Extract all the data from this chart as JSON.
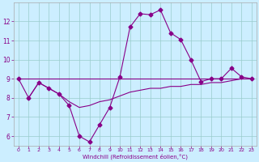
{
  "background_color": "#cceeff",
  "grid_color": "#99cccc",
  "line_color": "#880088",
  "xlabel": "Windchill (Refroidissement éolien,°C)",
  "ylim": [
    5.5,
    13.0
  ],
  "xlim": [
    -0.5,
    23.5
  ],
  "yticks": [
    6,
    7,
    8,
    9,
    10,
    11,
    12
  ],
  "xticks": [
    0,
    1,
    2,
    3,
    4,
    5,
    6,
    7,
    8,
    9,
    10,
    11,
    12,
    13,
    14,
    15,
    16,
    17,
    18,
    19,
    20,
    21,
    22,
    23
  ],
  "line1_x": [
    0,
    1,
    2,
    3,
    4,
    5,
    6,
    7,
    8,
    9,
    10,
    11,
    12,
    13,
    14,
    15,
    16,
    17,
    18,
    19,
    20,
    21,
    22,
    23
  ],
  "line1_y": [
    9.0,
    8.0,
    8.8,
    8.5,
    8.2,
    7.6,
    6.0,
    5.7,
    6.6,
    7.5,
    9.1,
    11.7,
    12.4,
    12.35,
    12.6,
    11.4,
    11.05,
    10.0,
    8.85,
    9.0,
    9.0,
    9.55,
    9.1,
    9.0
  ],
  "line2_x": [
    0,
    1,
    2,
    3,
    4,
    5,
    6,
    7,
    8,
    9,
    10,
    11,
    12,
    13,
    14,
    15,
    16,
    17,
    18,
    19,
    20,
    21,
    22,
    23
  ],
  "line2_y": [
    9.0,
    9.0,
    9.0,
    9.0,
    9.0,
    9.0,
    9.0,
    9.0,
    9.0,
    9.0,
    9.0,
    9.0,
    9.0,
    9.0,
    9.0,
    9.0,
    9.0,
    9.0,
    9.0,
    9.0,
    9.0,
    9.0,
    9.0,
    9.0
  ],
  "line3_x": [
    1,
    2,
    3,
    4,
    5,
    6,
    7,
    8,
    9,
    10,
    11,
    12,
    13,
    14,
    15,
    16,
    17,
    18,
    19,
    20,
    21,
    22,
    23
  ],
  "line3_y": [
    8.0,
    8.8,
    8.5,
    8.2,
    7.8,
    7.5,
    7.6,
    7.8,
    7.9,
    8.1,
    8.3,
    8.4,
    8.5,
    8.5,
    8.6,
    8.6,
    8.7,
    8.7,
    8.8,
    8.8,
    8.9,
    9.0,
    9.0
  ]
}
